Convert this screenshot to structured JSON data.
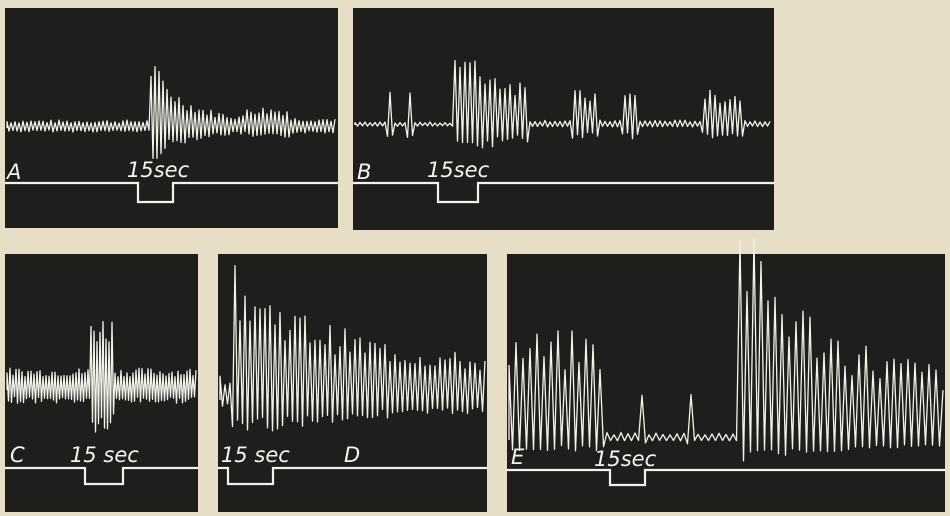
{
  "panels": [
    {
      "label": "A",
      "marker": "15sec"
    },
    {
      "label": "B",
      "marker": "15sec"
    },
    {
      "label": "C",
      "marker": "15 sec"
    },
    {
      "label": "D",
      "marker": "15 sec"
    },
    {
      "label": "E",
      "marker": "15sec"
    }
  ]
}
